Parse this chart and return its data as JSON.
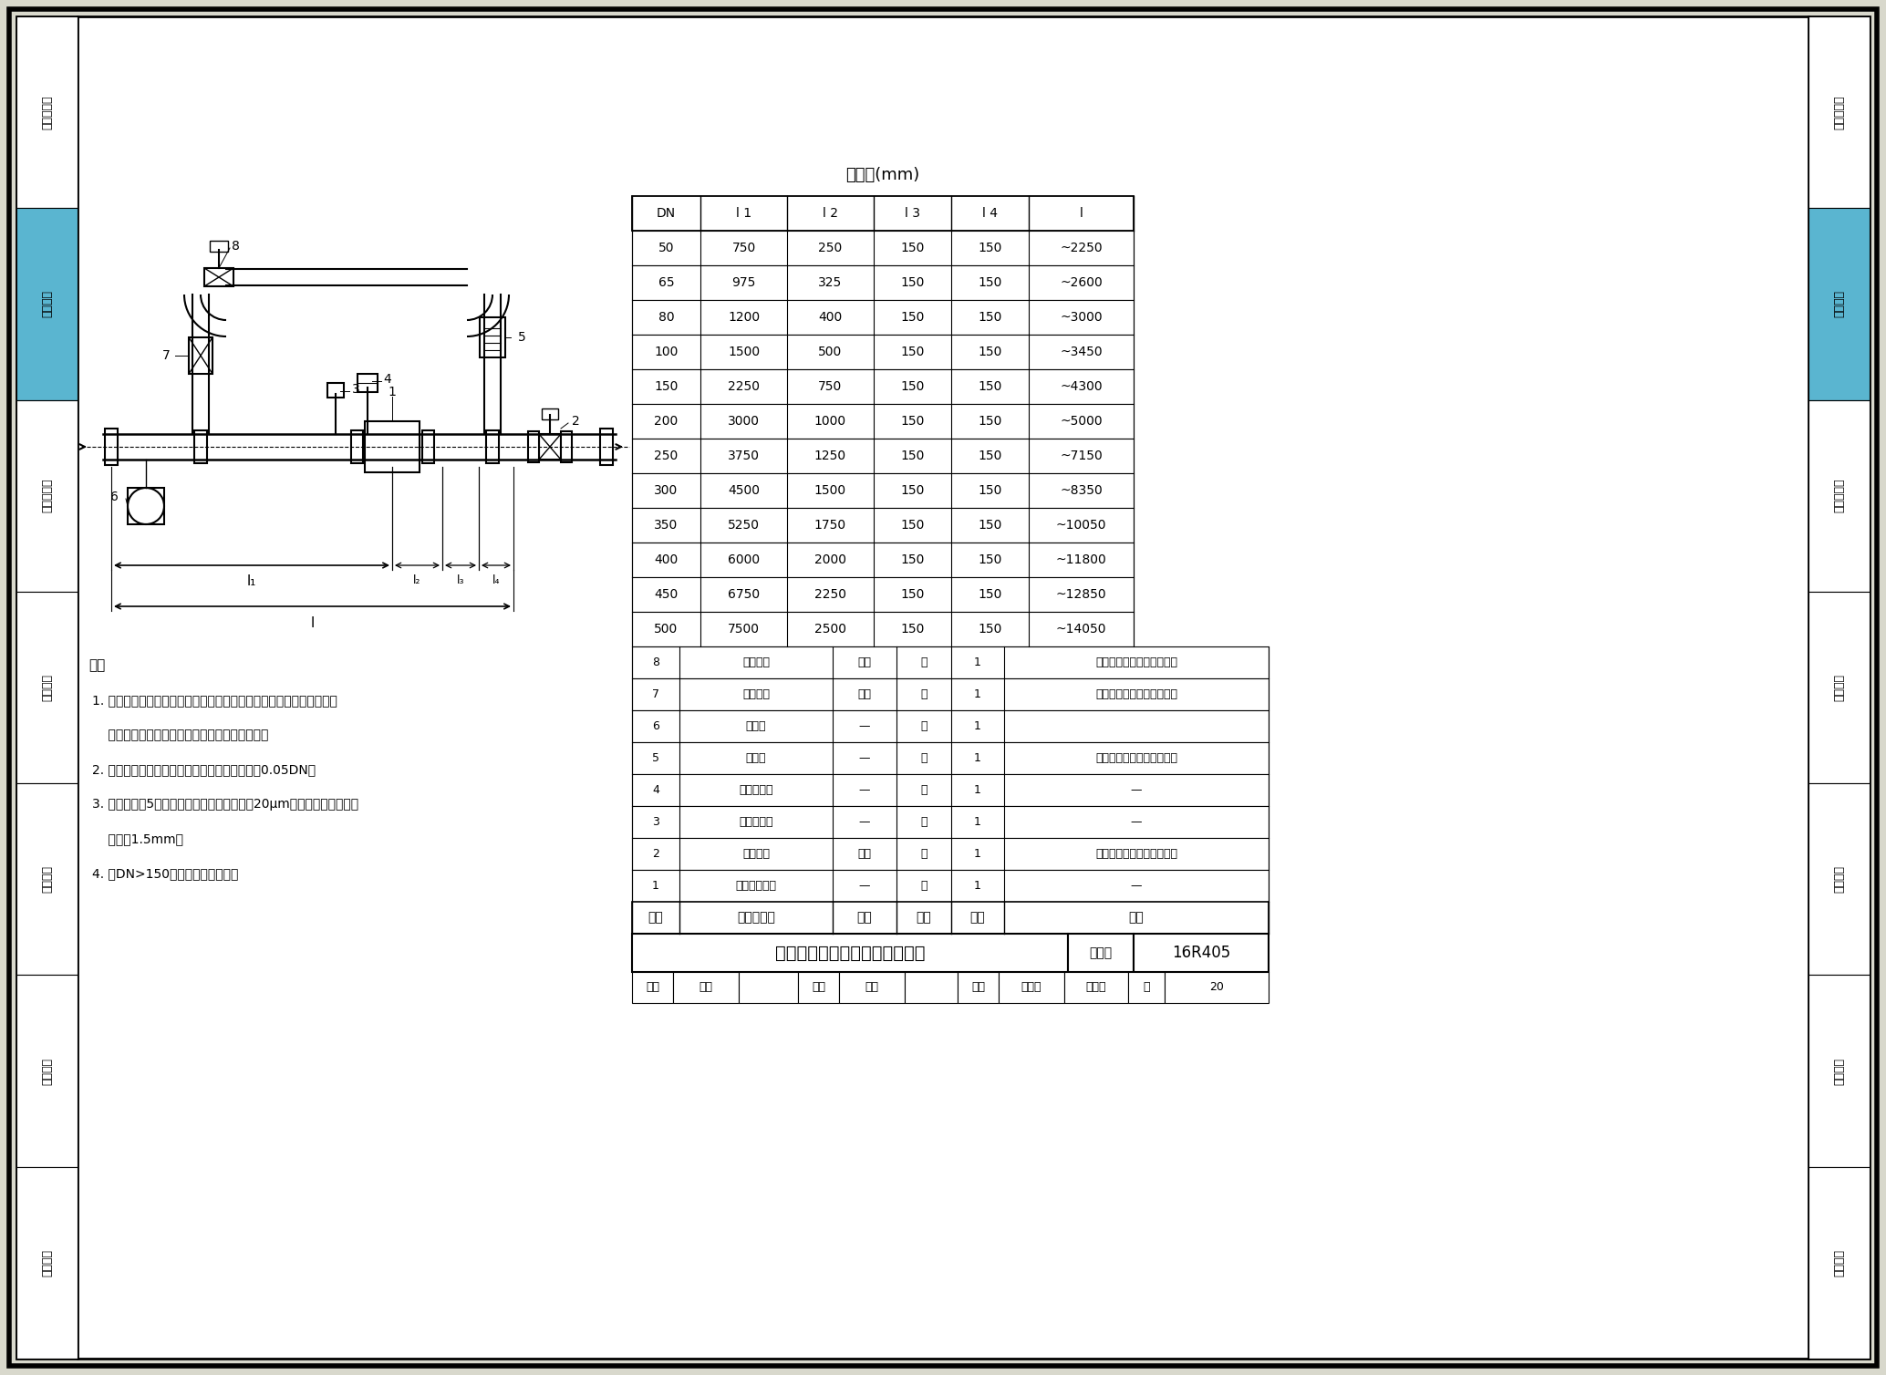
{
  "page_bg": "#d8d8cc",
  "sidebar_color": "#5ab5d0",
  "title_text": "超声波流量计水平管道上安装图",
  "catalog_number": "16R405",
  "sidebar_items": [
    "编制总说明",
    "流量仪表",
    "热冷量仪表",
    "温度仪表",
    "压力仪表",
    "湿度仪表",
    "液位仪表"
  ],
  "highlighted_item": "流量仪表",
  "table_title": "尺寸表(mm)",
  "dim_headers": [
    "DN",
    "l 1",
    "l 2",
    "l 3",
    "l 4",
    "l"
  ],
  "dim_data": [
    [
      "50",
      "750",
      "250",
      "150",
      "150",
      "~2250"
    ],
    [
      "65",
      "975",
      "325",
      "150",
      "150",
      "~2600"
    ],
    [
      "80",
      "1200",
      "400",
      "150",
      "150",
      "~3000"
    ],
    [
      "100",
      "1500",
      "500",
      "150",
      "150",
      "~3450"
    ],
    [
      "150",
      "2250",
      "750",
      "150",
      "150",
      "~4300"
    ],
    [
      "200",
      "3000",
      "1000",
      "150",
      "150",
      "~5000"
    ],
    [
      "250",
      "3750",
      "1250",
      "150",
      "150",
      "~7150"
    ],
    [
      "300",
      "4500",
      "1500",
      "150",
      "150",
      "~8350"
    ],
    [
      "350",
      "5250",
      "1750",
      "150",
      "150",
      "~10050"
    ],
    [
      "400",
      "6000",
      "2000",
      "150",
      "150",
      "~11800"
    ],
    [
      "450",
      "6750",
      "2250",
      "150",
      "150",
      "~12850"
    ],
    [
      "500",
      "7500",
      "2500",
      "150",
      "150",
      "~14050"
    ]
  ],
  "parts_headers": [
    "序号",
    "名称及规格",
    "材料",
    "单位",
    "数量",
    "备注"
  ],
  "parts_data": [
    [
      "8",
      "法兰球阀",
      "碳钢",
      "个",
      "1",
      "公称压力和直径由设计确定"
    ],
    [
      "7",
      "法兰球阀",
      "碳钢",
      "个",
      "1",
      "公称压力和直径由设计确定"
    ],
    [
      "6",
      "压差表",
      "—",
      "个",
      "1",
      ""
    ],
    [
      "5",
      "过滤器",
      "—",
      "个",
      "1",
      "公称压力和直径由设计确定"
    ],
    [
      "4",
      "压力传感器",
      "—",
      "个",
      "1",
      "—"
    ],
    [
      "3",
      "温度传感器",
      "—",
      "个",
      "1",
      "—"
    ],
    [
      "2",
      "法兰球阀",
      "碳钢",
      "个",
      "1",
      "公称压力和直径由设计确定"
    ],
    [
      "1",
      "超声波流量计",
      "—",
      "个",
      "1",
      "—"
    ]
  ],
  "notes_lines": [
    "注：",
    "1. 避开强电力设备、高频设备、强电源开关设备；避开高温热源和高辐",
    "    射热源的影响；避开强振动场所和强腐蚀环境。",
    "2. 上下游配管应与流量计同心，同轴偏差不大于0.05DN。",
    "3. 过滤器（件5）用于气体管道，过滤精度为20μm；用于水管道，过滤",
    "    精度为1.5mm。",
    "4. 当DN>150时，流量计设支架。"
  ]
}
